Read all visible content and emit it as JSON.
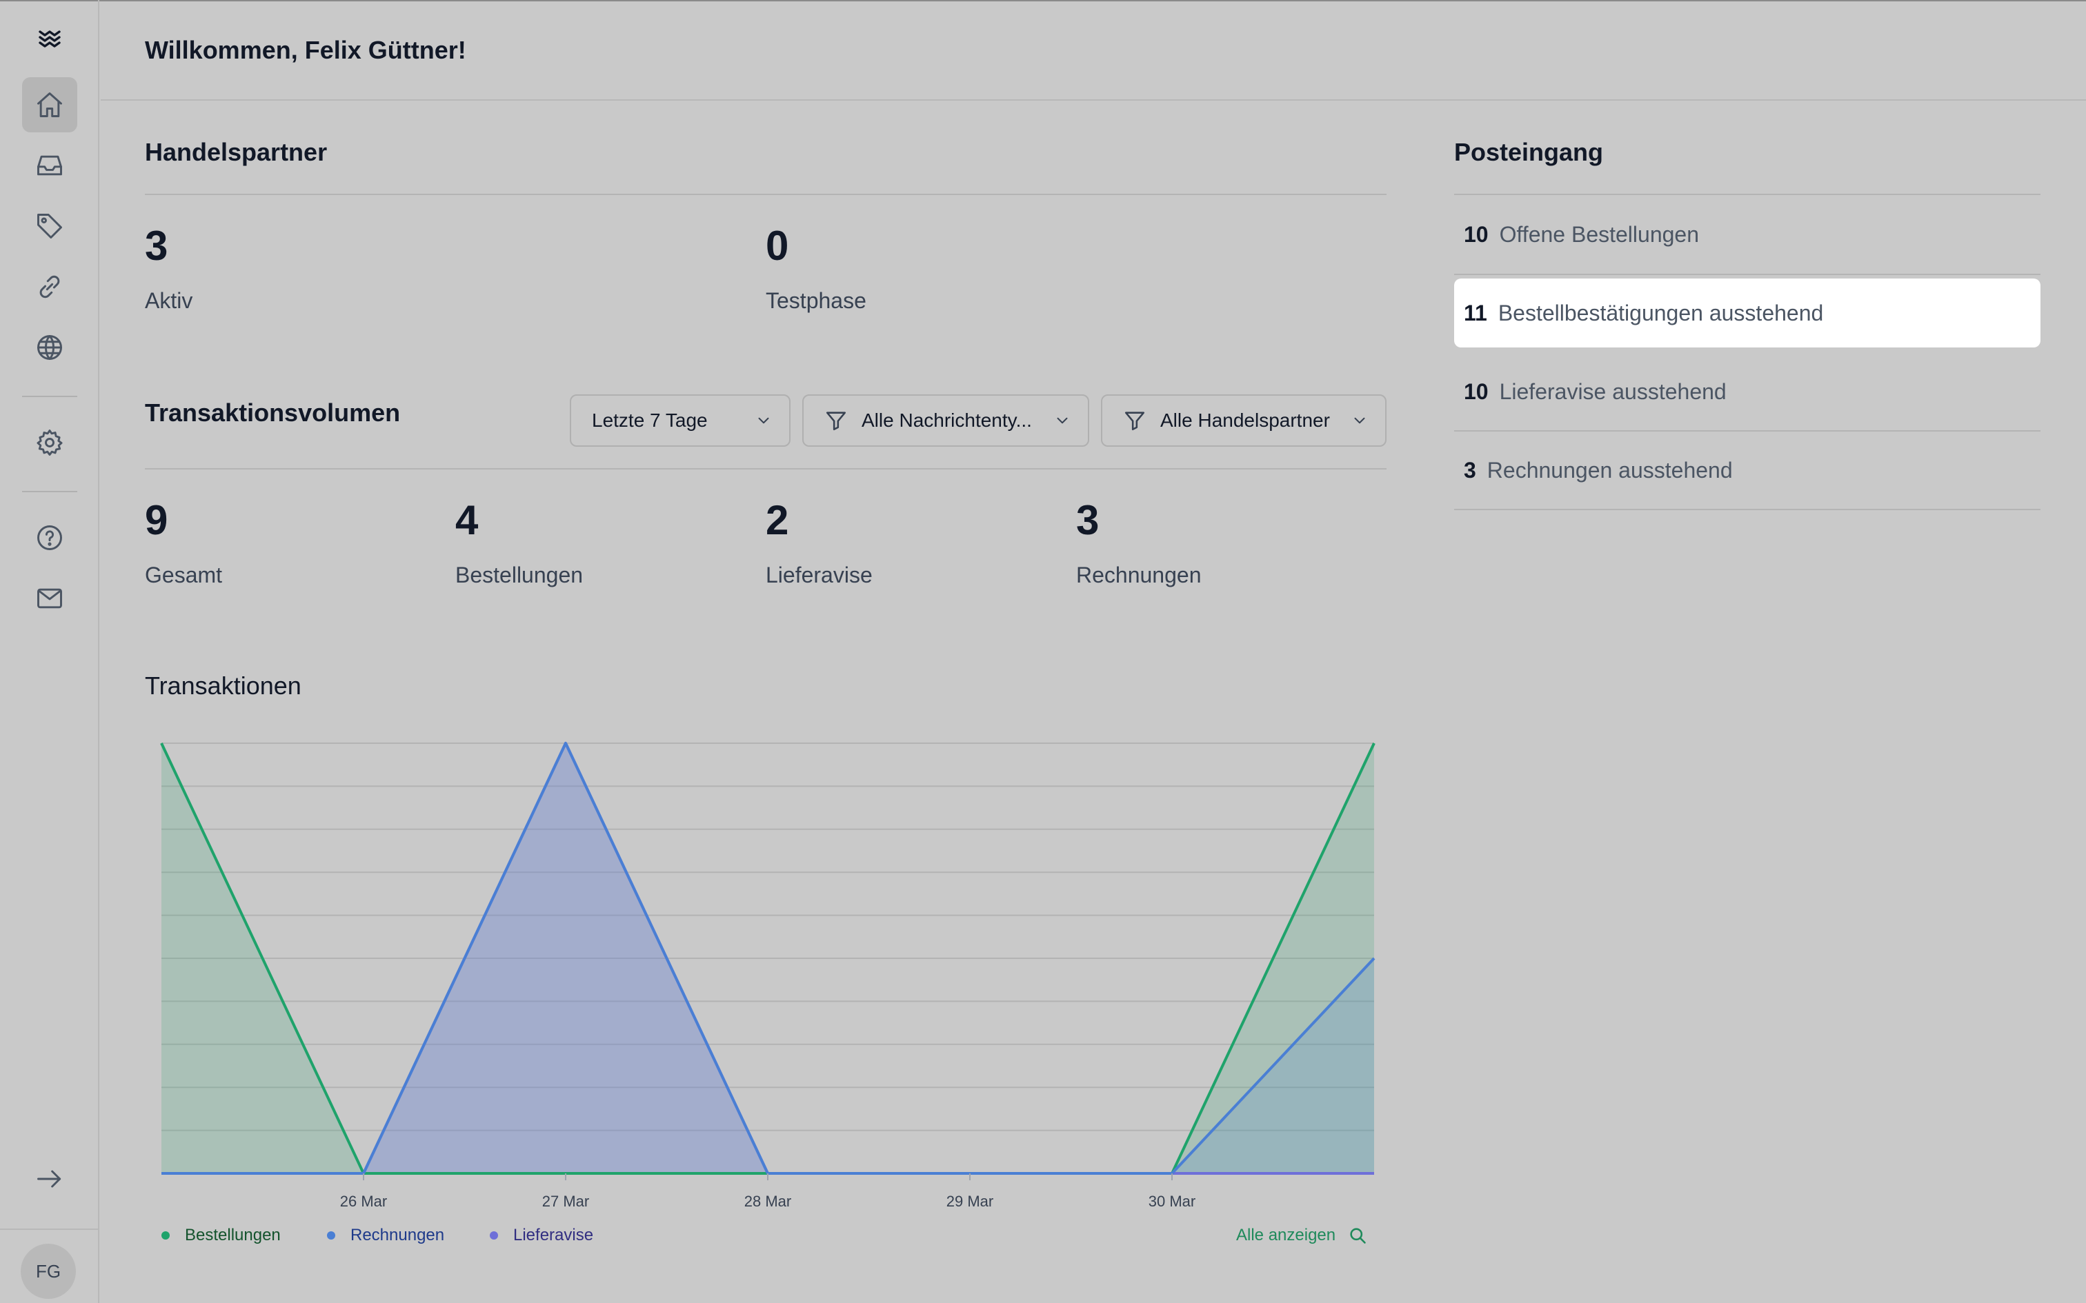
{
  "header": {
    "greeting": "Willkommen, Felix Güttner!"
  },
  "sidebar": {
    "items": [
      {
        "name": "home",
        "icon": "home-icon",
        "active": true
      },
      {
        "name": "inbox",
        "icon": "inbox-tray-icon",
        "active": false
      },
      {
        "name": "tags",
        "icon": "tag-icon",
        "active": false
      },
      {
        "name": "links",
        "icon": "link-icon",
        "active": false
      },
      {
        "name": "globe",
        "icon": "globe-icon",
        "active": false
      },
      {
        "name": "settings",
        "icon": "gear-icon",
        "active": false
      },
      {
        "name": "help",
        "icon": "question-icon",
        "active": false
      },
      {
        "name": "mail",
        "icon": "mail-icon",
        "active": false
      }
    ],
    "collapse_icon": "arrow-right-icon",
    "avatar_initials": "FG"
  },
  "handelspartner": {
    "title": "Handelspartner",
    "stats": [
      {
        "value": "3",
        "label": "Aktiv"
      },
      {
        "value": "0",
        "label": "Testphase"
      }
    ]
  },
  "transaktionsvolumen": {
    "title": "Transaktionsvolumen",
    "filters": {
      "period": "Letzte 7 Tage",
      "message_type": "Alle Nachrichtenty...",
      "partner": "Alle Handelspartner"
    },
    "stats": [
      {
        "value": "9",
        "label": "Gesamt"
      },
      {
        "value": "4",
        "label": "Bestellungen"
      },
      {
        "value": "2",
        "label": "Lieferavise"
      },
      {
        "value": "3",
        "label": "Rechnungen"
      }
    ]
  },
  "transaktionen": {
    "title": "Transaktionen",
    "show_all": "Alle anzeigen"
  },
  "posteingang": {
    "title": "Posteingang",
    "items": [
      {
        "count": "10",
        "label": "Offene Bestellungen",
        "highlighted": false
      },
      {
        "count": "11",
        "label": "Bestellbestätigungen ausstehend",
        "highlighted": true
      },
      {
        "count": "10",
        "label": "Lieferavise ausstehend",
        "highlighted": false
      },
      {
        "count": "3",
        "label": "Rechnungen ausstehend",
        "highlighted": false
      }
    ]
  },
  "colors": {
    "bestellungen": "#1fa36b",
    "rechnungen": "#4a7fd4",
    "lieferavise": "#6e6fd8",
    "accent_green": "#1f8a5b"
  },
  "chart_data": {
    "type": "area",
    "x": [
      "25 Mar",
      "26 Mar",
      "27 Mar",
      "28 Mar",
      "29 Mar",
      "30 Mar",
      "31 Mar"
    ],
    "tick_labels": [
      "26 Mar",
      "27 Mar",
      "28 Mar",
      "29 Mar",
      "30 Mar"
    ],
    "ylim": [
      0,
      2
    ],
    "grid": true,
    "legend_position": "bottom-left",
    "series": [
      {
        "name": "Bestellungen",
        "color": "#1fa36b",
        "values": [
          2,
          0,
          0,
          0,
          0,
          0,
          2
        ]
      },
      {
        "name": "Rechnungen",
        "color": "#4a7fd4",
        "values": [
          0,
          0,
          2,
          0,
          0,
          0,
          1
        ]
      },
      {
        "name": "Lieferavise",
        "color": "#6e6fd8",
        "values": [
          0,
          0,
          2,
          0,
          0,
          0,
          0
        ]
      }
    ]
  }
}
